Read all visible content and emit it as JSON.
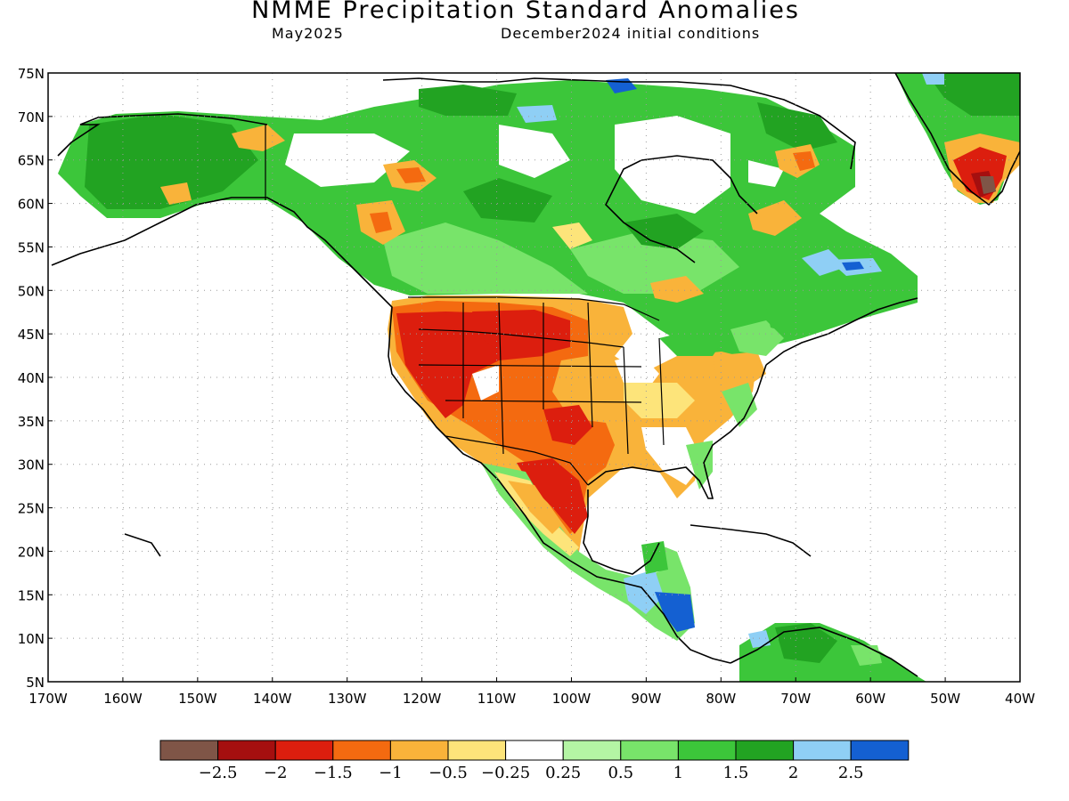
{
  "header": {
    "title": "NMME Precipitation Standard Anomalies",
    "month": "May2025",
    "init": "December2024 initial conditions"
  },
  "axes": {
    "lat_labels": [
      "75N",
      "70N",
      "65N",
      "60N",
      "55N",
      "50N",
      "45N",
      "40N",
      "35N",
      "30N",
      "25N",
      "20N",
      "15N",
      "10N",
      "5N"
    ],
    "lon_labels": [
      "170W",
      "160W",
      "150W",
      "140W",
      "130W",
      "120W",
      "110W",
      "100W",
      "90W",
      "80W",
      "70W",
      "60W",
      "50W",
      "40W"
    ],
    "lat_range": [
      5,
      75
    ],
    "lon_range": [
      -170,
      -40
    ],
    "grid": "dotted"
  },
  "colorbar": {
    "labels": [
      "-2.5",
      "-2",
      "-1.5",
      "-1",
      "-0.5",
      "-0.25",
      "0.25",
      "0.5",
      "1",
      "1.5",
      "2",
      "2.5"
    ],
    "colors": [
      "#7f5547",
      "#a50f0f",
      "#dc1e0e",
      "#f46a10",
      "#f9b33a",
      "#fde47a",
      "#ffffff",
      "#b4f5a4",
      "#78e46a",
      "#3cc63a",
      "#22a322",
      "#8fcff5",
      "#1460d2"
    ]
  }
}
